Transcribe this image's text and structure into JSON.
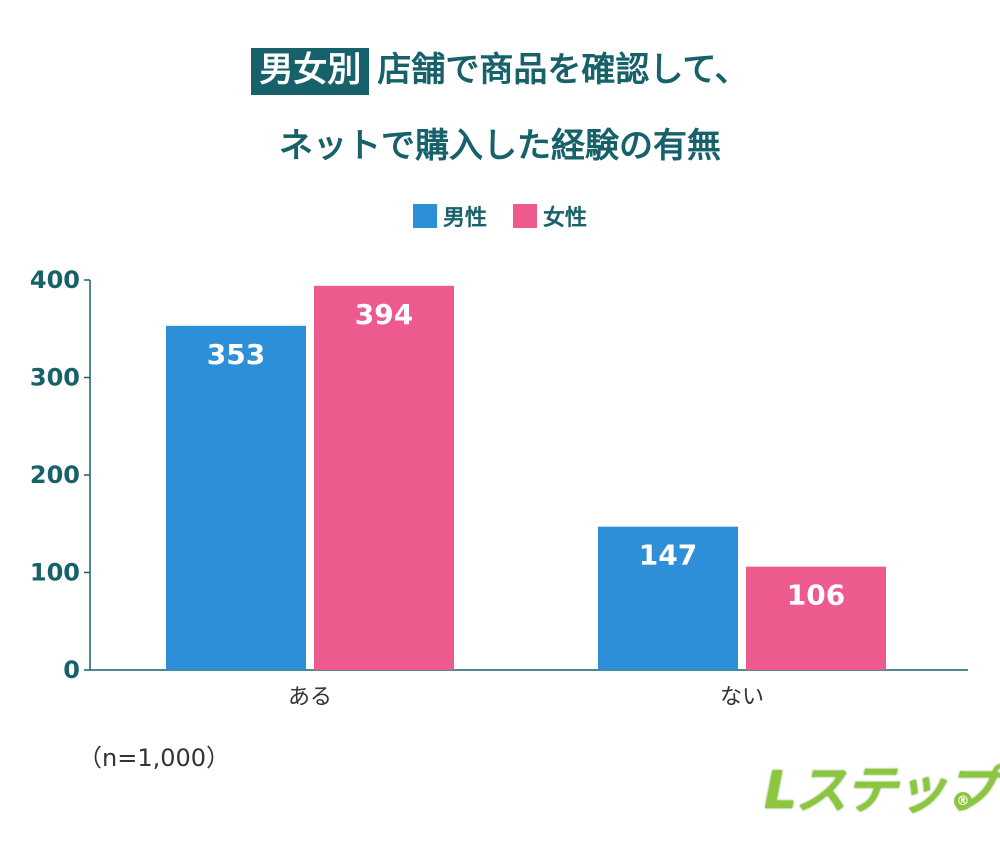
{
  "title": {
    "badge": "男女別",
    "line1": "店舗で商品を確認して、",
    "line2": "ネットで購入した経験の有無"
  },
  "legend": [
    {
      "label": "男性",
      "color": "#2e8fd9"
    },
    {
      "label": "女性",
      "color": "#ec5a8e"
    }
  ],
  "note": "（n=1,000）",
  "logo": {
    "text": "Lステップ",
    "mark": "®"
  },
  "chart_data": {
    "type": "bar",
    "categories": [
      "ある",
      "ない"
    ],
    "series": [
      {
        "name": "男性",
        "values": [
          353,
          147
        ],
        "color": "#2e8fd9"
      },
      {
        "name": "女性",
        "values": [
          394,
          106
        ],
        "color": "#ec5a8e"
      }
    ],
    "ylim": [
      0,
      400
    ],
    "yticks": [
      0,
      100,
      200,
      300,
      400
    ],
    "data_labels": true,
    "legend_position": "top-center",
    "grid": false
  }
}
